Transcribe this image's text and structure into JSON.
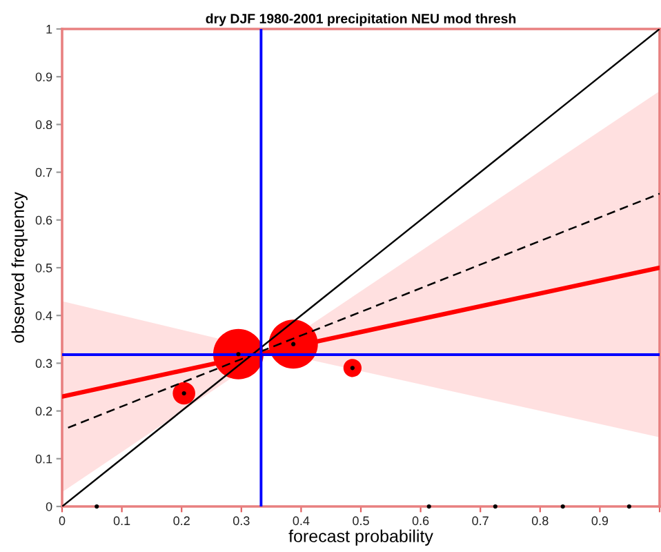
{
  "chart_data": {
    "type": "line",
    "title": "dry DJF 1980-2001 precipitation NEU mod thresh",
    "xlabel": "forecast probability",
    "ylabel": "observed frequency",
    "xlim": [
      0,
      1
    ],
    "ylim": [
      0,
      1
    ],
    "xticks": [
      0,
      0.1,
      0.2,
      0.3,
      0.4,
      0.5,
      0.6,
      0.7,
      0.8,
      0.9,
      {
        "value": 1,
        "label": null
      }
    ],
    "yticks": [
      0,
      0.1,
      0.2,
      0.3,
      0.4,
      0.5,
      0.6,
      0.7,
      0.8,
      0.9,
      1
    ],
    "series": [
      {
        "color": "#ff0000",
        "x": [
          0,
          0.35,
          1
        ],
        "values": [
          0.23,
          0.325,
          0.5
        ],
        "lower": [
          0.03,
          0.325,
          0.145
        ],
        "upper": [
          0.43,
          0.325,
          0.87
        ],
        "line_style": "solid"
      },
      {
        "type": "bubble",
        "color": "#ff0000",
        "x": [
          0.204,
          0.295,
          0.387,
          0.486
        ],
        "values": [
          0.237,
          0.319,
          0.34,
          0.29
        ],
        "sizes": [
          0.2,
          1,
          0.95,
          0.13
        ]
      },
      {
        "color": "#000000",
        "x": [
          0,
          1
        ],
        "values": [
          0,
          1
        ],
        "line_style": "solid"
      },
      {
        "color": "#000000",
        "x": [
          0.01,
          1
        ],
        "values": [
          0.165,
          0.655
        ],
        "line_style": "dashed"
      },
      {
        "type": "scatter",
        "color": "#000000",
        "x": [
          0.058,
          0.204,
          0.295,
          0.387,
          0.486,
          0.614,
          0.725,
          0.838,
          0.949
        ],
        "values": [
          0,
          0.237,
          0.319,
          0.34,
          0.29,
          0,
          0,
          0,
          0
        ],
        "marker": "circle"
      }
    ],
    "ref_lines": [
      {
        "axis": "x",
        "value": 0.333,
        "color": "#0000ff"
      },
      {
        "axis": "y",
        "value": 0.318,
        "color": "#0000ff"
      }
    ],
    "grid": false
  }
}
